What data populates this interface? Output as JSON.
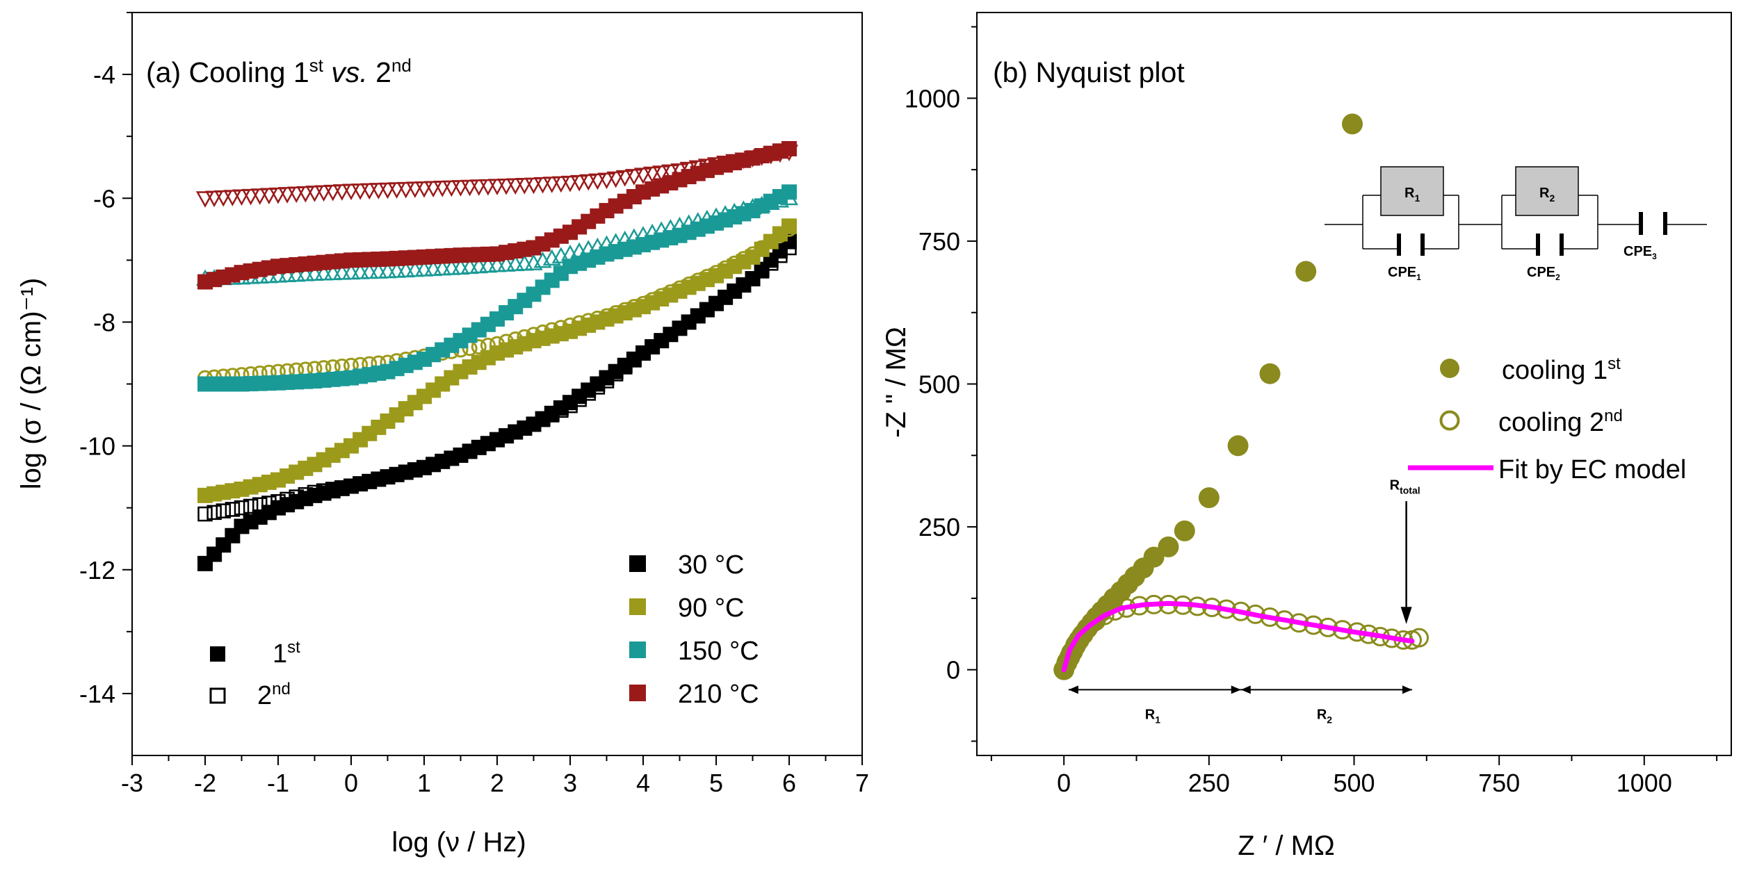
{
  "chart_data": [
    {
      "id": "a",
      "type": "scatter",
      "title": "(a) Cooling 1st vs. 2nd",
      "title_parts": {
        "prefix": "(a) Cooling 1",
        "sup1": "st",
        "vs": " vs.",
        "mid": " 2",
        "sup2": "nd"
      },
      "xlabel": "log (ν / Hz)",
      "ylabel": "log (σ / (Ω cm)⁻¹)",
      "xlim": [
        -3,
        7
      ],
      "ylim": [
        -15,
        -3
      ],
      "xticks": [
        "-3",
        "-2",
        "-1",
        "0",
        "1",
        "2",
        "3",
        "4",
        "5",
        "6",
        "7"
      ],
      "yticks": [
        "-14",
        "-12",
        "-10",
        "-8",
        "-6",
        "-4"
      ],
      "ytick_values": [
        -14,
        -12,
        -10,
        -8,
        -6,
        -4
      ],
      "legend_temps": [
        {
          "label": "30 °C",
          "color": "#000000"
        },
        {
          "label": "90 °C",
          "color": "#9c9a1a"
        },
        {
          "label": "150 °C",
          "color": "#1a9a96"
        },
        {
          "label": "210 °C",
          "color": "#9a1a1a"
        }
      ],
      "legend_runs": [
        {
          "label": "1",
          "sup": "st",
          "marker": "filled-square"
        },
        {
          "label": "2",
          "sup": "nd",
          "marker": "open-square"
        }
      ],
      "series": [
        {
          "name": "30 °C 1st",
          "color": "#000000",
          "marker": "filled-square",
          "points": [
            [
              -2.0,
              -11.9
            ],
            [
              -1.5,
              -11.3
            ],
            [
              -1.0,
              -11.0
            ],
            [
              -0.5,
              -10.8
            ],
            [
              0.0,
              -10.65
            ],
            [
              0.5,
              -10.5
            ],
            [
              1.0,
              -10.35
            ],
            [
              1.5,
              -10.15
            ],
            [
              2.0,
              -9.9
            ],
            [
              2.5,
              -9.65
            ],
            [
              3.0,
              -9.3
            ],
            [
              3.5,
              -8.9
            ],
            [
              4.0,
              -8.5
            ],
            [
              4.5,
              -8.1
            ],
            [
              5.0,
              -7.7
            ],
            [
              5.5,
              -7.3
            ],
            [
              6.0,
              -6.7
            ]
          ]
        },
        {
          "name": "30 °C 2nd",
          "color": "#000000",
          "marker": "open-square",
          "points": [
            [
              -2.0,
              -11.1
            ],
            [
              -1.5,
              -11.0
            ],
            [
              -1.0,
              -10.9
            ],
            [
              -0.5,
              -10.75
            ],
            [
              0.0,
              -10.65
            ],
            [
              0.5,
              -10.5
            ],
            [
              1.0,
              -10.35
            ],
            [
              1.5,
              -10.15
            ],
            [
              2.0,
              -9.9
            ],
            [
              2.5,
              -9.65
            ],
            [
              3.0,
              -9.35
            ],
            [
              3.5,
              -8.95
            ],
            [
              4.0,
              -8.5
            ],
            [
              4.5,
              -8.1
            ],
            [
              5.0,
              -7.7
            ],
            [
              5.5,
              -7.3
            ],
            [
              6.0,
              -6.8
            ]
          ]
        },
        {
          "name": "90 °C 1st",
          "color": "#9c9a1a",
          "marker": "filled-square",
          "points": [
            [
              -2.0,
              -10.8
            ],
            [
              -1.5,
              -10.7
            ],
            [
              -1.0,
              -10.55
            ],
            [
              -0.5,
              -10.3
            ],
            [
              0.0,
              -10.0
            ],
            [
              0.5,
              -9.6
            ],
            [
              1.0,
              -9.2
            ],
            [
              1.5,
              -8.8
            ],
            [
              2.0,
              -8.5
            ],
            [
              2.5,
              -8.3
            ],
            [
              3.0,
              -8.15
            ],
            [
              3.5,
              -7.95
            ],
            [
              4.0,
              -7.75
            ],
            [
              4.5,
              -7.5
            ],
            [
              5.0,
              -7.25
            ],
            [
              5.5,
              -6.95
            ],
            [
              6.0,
              -6.45
            ]
          ]
        },
        {
          "name": "90 °C 2nd",
          "color": "#9c9a1a",
          "marker": "open-circle",
          "points": [
            [
              -2.0,
              -8.9
            ],
            [
              -1.5,
              -8.85
            ],
            [
              -1.0,
              -8.8
            ],
            [
              -0.5,
              -8.75
            ],
            [
              0.0,
              -8.7
            ],
            [
              0.5,
              -8.65
            ],
            [
              1.0,
              -8.55
            ],
            [
              1.5,
              -8.45
            ],
            [
              2.0,
              -8.35
            ],
            [
              2.5,
              -8.2
            ],
            [
              3.0,
              -8.05
            ],
            [
              3.5,
              -7.9
            ],
            [
              4.0,
              -7.7
            ],
            [
              4.5,
              -7.45
            ],
            [
              5.0,
              -7.2
            ],
            [
              5.5,
              -6.9
            ],
            [
              6.0,
              -6.5
            ]
          ]
        },
        {
          "name": "150 °C 1st",
          "color": "#1a9a96",
          "marker": "filled-square",
          "points": [
            [
              -2.0,
              -9.0
            ],
            [
              -1.5,
              -9.0
            ],
            [
              -1.0,
              -8.98
            ],
            [
              -0.5,
              -8.95
            ],
            [
              0.0,
              -8.9
            ],
            [
              0.5,
              -8.8
            ],
            [
              1.0,
              -8.6
            ],
            [
              1.5,
              -8.3
            ],
            [
              2.0,
              -7.95
            ],
            [
              2.5,
              -7.55
            ],
            [
              3.0,
              -7.1
            ],
            [
              3.5,
              -6.9
            ],
            [
              4.0,
              -6.75
            ],
            [
              4.5,
              -6.6
            ],
            [
              5.0,
              -6.4
            ],
            [
              5.5,
              -6.2
            ],
            [
              6.0,
              -5.9
            ]
          ]
        },
        {
          "name": "150 °C 2nd",
          "color": "#1a9a96",
          "marker": "open-triangle-up",
          "points": [
            [
              -2.0,
              -7.3
            ],
            [
              -1.5,
              -7.28
            ],
            [
              -1.0,
              -7.25
            ],
            [
              -0.5,
              -7.22
            ],
            [
              0.0,
              -7.2
            ],
            [
              0.5,
              -7.18
            ],
            [
              1.0,
              -7.15
            ],
            [
              1.5,
              -7.12
            ],
            [
              2.0,
              -7.08
            ],
            [
              2.5,
              -7.05
            ],
            [
              3.0,
              -6.9
            ],
            [
              3.5,
              -6.75
            ],
            [
              4.0,
              -6.6
            ],
            [
              4.5,
              -6.45
            ],
            [
              5.0,
              -6.3
            ],
            [
              5.5,
              -6.15
            ],
            [
              6.0,
              -6.0
            ]
          ]
        },
        {
          "name": "210 °C 1st",
          "color": "#9a1a1a",
          "marker": "filled-square",
          "points": [
            [
              -2.0,
              -7.35
            ],
            [
              -1.5,
              -7.2
            ],
            [
              -1.0,
              -7.1
            ],
            [
              -0.5,
              -7.05
            ],
            [
              0.0,
              -7.0
            ],
            [
              0.5,
              -6.98
            ],
            [
              1.0,
              -6.95
            ],
            [
              1.5,
              -6.92
            ],
            [
              2.0,
              -6.9
            ],
            [
              2.5,
              -6.8
            ],
            [
              3.0,
              -6.55
            ],
            [
              3.5,
              -6.2
            ],
            [
              4.0,
              -5.9
            ],
            [
              4.5,
              -5.7
            ],
            [
              5.0,
              -5.5
            ],
            [
              5.5,
              -5.35
            ],
            [
              6.0,
              -5.2
            ]
          ]
        },
        {
          "name": "210 °C 2nd",
          "color": "#9a1a1a",
          "marker": "open-triangle-down",
          "points": [
            [
              -2.0,
              -6.0
            ],
            [
              -1.5,
              -5.97
            ],
            [
              -1.0,
              -5.94
            ],
            [
              -0.5,
              -5.91
            ],
            [
              0.0,
              -5.88
            ],
            [
              0.5,
              -5.86
            ],
            [
              1.0,
              -5.84
            ],
            [
              1.5,
              -5.82
            ],
            [
              2.0,
              -5.8
            ],
            [
              2.5,
              -5.78
            ],
            [
              3.0,
              -5.75
            ],
            [
              3.5,
              -5.7
            ],
            [
              4.0,
              -5.62
            ],
            [
              4.5,
              -5.55
            ],
            [
              5.0,
              -5.45
            ],
            [
              5.5,
              -5.35
            ],
            [
              6.0,
              -5.25
            ]
          ]
        }
      ]
    },
    {
      "id": "b",
      "type": "scatter",
      "title": "(b) Nyquist plot",
      "xlabel": "Z ′ / MΩ",
      "ylabel": "-Z \" / MΩ",
      "xlim": [
        -150,
        1150
      ],
      "ylim": [
        -150,
        1150
      ],
      "xticks": [
        "0",
        "250",
        "500",
        "750",
        "1000"
      ],
      "xtick_values": [
        0,
        250,
        500,
        750,
        1000
      ],
      "yticks": [
        "0",
        "250",
        "500",
        "750",
        "1000"
      ],
      "ytick_values": [
        0,
        250,
        500,
        750,
        1000
      ],
      "legend": [
        {
          "label": "cooling 1",
          "sup": "st",
          "marker": "filled-circle",
          "color": "#8a8a1e"
        },
        {
          "label": "cooling 2",
          "sup": "nd",
          "marker": "open-circle",
          "color": "#8a8a1e"
        },
        {
          "label": "Fit by EC model",
          "marker": "line",
          "color": "#ff00ff"
        }
      ],
      "series": [
        {
          "name": "cooling 1st",
          "color": "#8a8a1e",
          "marker": "filled-circle",
          "points": [
            [
              0,
              0
            ],
            [
              5,
              12
            ],
            [
              10,
              22
            ],
            [
              15,
              32
            ],
            [
              20,
              42
            ],
            [
              26,
              52
            ],
            [
              33,
              62
            ],
            [
              40,
              72
            ],
            [
              48,
              82
            ],
            [
              56,
              92
            ],
            [
              65,
              102
            ],
            [
              75,
              113
            ],
            [
              86,
              125
            ],
            [
              98,
              137
            ],
            [
              110,
              150
            ],
            [
              122,
              163
            ],
            [
              137,
              178
            ],
            [
              155,
              197
            ],
            [
              180,
              215
            ],
            [
              208,
              243
            ],
            [
              250,
              301
            ],
            [
              300,
              392
            ],
            [
              355,
              518
            ],
            [
              417,
              697
            ],
            [
              497,
              955
            ]
          ]
        },
        {
          "name": "cooling 2nd",
          "color": "#8a8a1e",
          "marker": "open-circle",
          "points": [
            [
              0,
              0
            ],
            [
              5,
              15
            ],
            [
              12,
              30
            ],
            [
              20,
              45
            ],
            [
              30,
              60
            ],
            [
              42,
              73
            ],
            [
              55,
              85
            ],
            [
              70,
              95
            ],
            [
              88,
              103
            ],
            [
              108,
              108
            ],
            [
              130,
              112
            ],
            [
              155,
              114
            ],
            [
              180,
              114
            ],
            [
              205,
              113
            ],
            [
              230,
              111
            ],
            [
              255,
              109
            ],
            [
              280,
              106
            ],
            [
              305,
              102
            ],
            [
              330,
              97
            ],
            [
              355,
              92
            ],
            [
              380,
              87
            ],
            [
              405,
              82
            ],
            [
              430,
              78
            ],
            [
              455,
              74
            ],
            [
              480,
              70
            ],
            [
              505,
              66
            ],
            [
              525,
              62
            ],
            [
              545,
              58
            ],
            [
              565,
              55
            ],
            [
              585,
              52
            ],
            [
              600,
              52
            ],
            [
              612,
              56
            ]
          ]
        },
        {
          "name": "Fit by EC model",
          "color": "#ff00ff",
          "marker": "line",
          "points": [
            [
              0,
              0
            ],
            [
              10,
              35
            ],
            [
              25,
              60
            ],
            [
              45,
              78
            ],
            [
              70,
              95
            ],
            [
              100,
              108
            ],
            [
              140,
              114
            ],
            [
              180,
              116
            ],
            [
              220,
              114
            ],
            [
              260,
              109
            ],
            [
              300,
              102
            ],
            [
              340,
              94
            ],
            [
              380,
              87
            ],
            [
              420,
              80
            ],
            [
              460,
              73
            ],
            [
              500,
              66
            ],
            [
              540,
              60
            ],
            [
              580,
              53
            ],
            [
              600,
              50
            ]
          ]
        }
      ],
      "annotations": {
        "r_total": "R",
        "r_total_sub": "total",
        "r1": "R",
        "r1_sub": "1",
        "r2": "R",
        "r2_sub": "2"
      },
      "circuit": {
        "r1": "R",
        "r1_sub": "1",
        "r2": "R",
        "r2_sub": "2",
        "cpe1": "CPE",
        "cpe1_sub": "1",
        "cpe2": "CPE",
        "cpe2_sub": "2",
        "cpe3": "CPE",
        "cpe3_sub": "3"
      }
    }
  ]
}
